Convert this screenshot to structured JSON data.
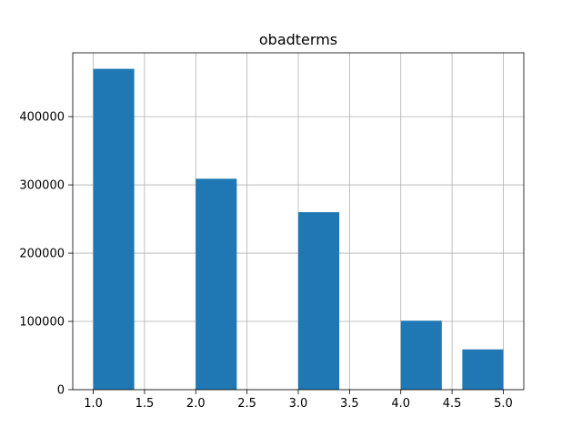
{
  "chart_data": {
    "type": "bar",
    "title": "obadterms",
    "xlabel": "",
    "ylabel": "",
    "xlim": [
      0.8,
      5.2
    ],
    "ylim": [
      0,
      493500
    ],
    "grid": true,
    "legend": "none",
    "bar_color": "#1f77b4",
    "grid_color": "#b0b0b0",
    "x_ticks": [
      1.0,
      1.5,
      2.0,
      2.5,
      3.0,
      3.5,
      4.0,
      4.5,
      5.0
    ],
    "x_tick_labels": [
      "1.0",
      "1.5",
      "2.0",
      "2.5",
      "3.0",
      "3.5",
      "4.0",
      "4.5",
      "5.0"
    ],
    "y_ticks": [
      0,
      100000,
      200000,
      300000,
      400000
    ],
    "y_tick_labels": [
      "0",
      "100000",
      "200000",
      "300000",
      "400000"
    ],
    "bins": [
      {
        "x0": 1.0,
        "x1": 1.4,
        "value": 470000
      },
      {
        "x0": 2.0,
        "x1": 2.4,
        "value": 309000
      },
      {
        "x0": 3.0,
        "x1": 3.4,
        "value": 260000
      },
      {
        "x0": 4.0,
        "x1": 4.4,
        "value": 101000
      },
      {
        "x0": 4.6,
        "x1": 5.0,
        "value": 59000
      }
    ]
  }
}
